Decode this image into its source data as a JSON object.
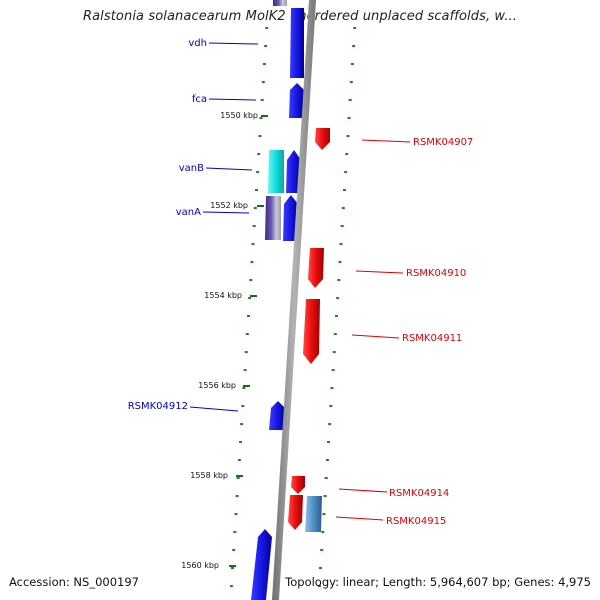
{
  "title": "Ralstonia solanacearum MolK2 unordered unplaced scaffolds, w...",
  "accession": "Accession: NS_000197",
  "topology": "Topology: linear; Length: 5,964,607 bp; Genes: 4,975",
  "colors": {
    "plus_strand": "#1010dd",
    "minus_strand": "#ee1111",
    "cyan_gene": "#11dddd",
    "steel_gene": "#4f8fc8",
    "violet_gene": "#5a4aa0",
    "backbone": "#8a8a8a",
    "tick": "#1a8a1a",
    "left_label": "#0000cc",
    "right_label": "#dd0000"
  },
  "scale_labels": [
    "1550 kbp",
    "1552 kbp",
    "1554 kbp",
    "1556 kbp",
    "1558 kbp",
    "1560 kbp"
  ],
  "genes": [
    {
      "label": "vdh",
      "strand": "+",
      "color_key": "plus_strand"
    },
    {
      "label": "fca",
      "strand": "+",
      "color_key": "plus_strand"
    },
    {
      "label": "RSMK04907",
      "strand": "-",
      "color_key": "minus_strand"
    },
    {
      "label": "vanB",
      "strand": "+",
      "color_key": "cyan_gene"
    },
    {
      "label": "vanA",
      "strand": "+",
      "color_key": "violet_gene"
    },
    {
      "label": "RSMK04910",
      "strand": "-",
      "color_key": "minus_strand"
    },
    {
      "label": "RSMK04911",
      "strand": "-",
      "color_key": "minus_strand"
    },
    {
      "label": "RSMK04912",
      "strand": "+",
      "color_key": "plus_strand"
    },
    {
      "label": "RSMK04914",
      "strand": "-",
      "color_key": "minus_strand"
    },
    {
      "label": "RSMK04915",
      "strand": "-",
      "color_key": "steel_gene"
    }
  ]
}
